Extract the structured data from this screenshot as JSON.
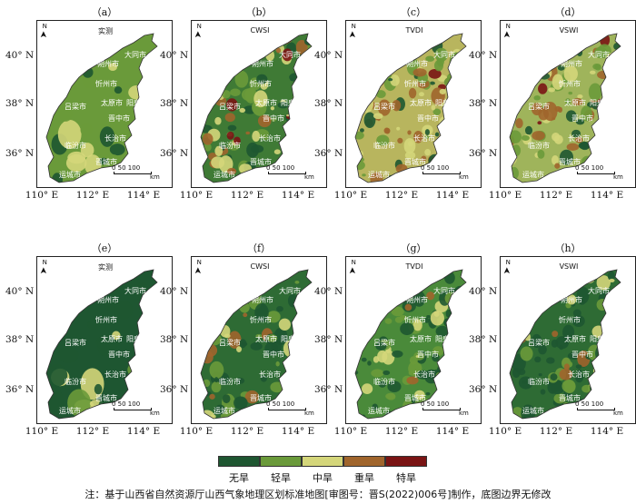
{
  "panels": [
    {
      "letter": "（a）",
      "title": "实测"
    },
    {
      "letter": "（b）",
      "title": "CWSI"
    },
    {
      "letter": "（c）",
      "title": "TVDI"
    },
    {
      "letter": "（d）",
      "title": "VSWI"
    },
    {
      "letter": "（e）",
      "title": "实测"
    },
    {
      "letter": "（f）",
      "title": "CWSI"
    },
    {
      "letter": "（g）",
      "title": "TVDI"
    },
    {
      "letter": "（h）",
      "title": "VSWI"
    }
  ],
  "north_label": "N",
  "y_ticks": [
    "40° N",
    "38° N",
    "36° N"
  ],
  "x_ticks": [
    "110° E",
    "112° E",
    "114° E"
  ],
  "scale": {
    "numbers": "0  50 100",
    "unit": "km"
  },
  "cities": [
    "大同市",
    "朔州市",
    "忻州市",
    "太原市",
    "吕梁市",
    "阳泉市",
    "晋中市",
    "长治市",
    "临汾市",
    "晋城市",
    "运城市"
  ],
  "legend": [
    {
      "label": "无旱",
      "color": "#1e5631"
    },
    {
      "label": "轻旱",
      "color": "#6a9a3a"
    },
    {
      "label": "中旱",
      "color": "#d4d67a"
    },
    {
      "label": "重旱",
      "color": "#a0652c"
    },
    {
      "label": "特旱",
      "color": "#7a1414"
    }
  ],
  "note": "注：基于山西省自然资源厅山西气象地理区划标准地图[审图号：晋S(2022)006号]制作，底图边界无修改"
}
